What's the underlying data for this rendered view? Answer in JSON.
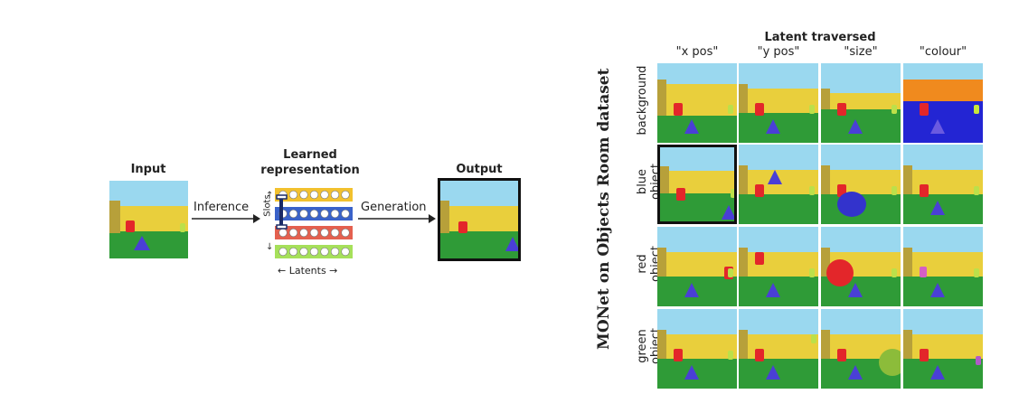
{
  "left": {
    "input_title": "Input",
    "learned_title_line1": "Learned",
    "learned_title_line2": "representation",
    "output_title": "Output",
    "inference_label": "Inference",
    "generation_label": "Generation",
    "slots_label": "Slots",
    "latents_label": "Latents",
    "slot_colors": [
      "#f2c12e",
      "#3a62c9",
      "#e4604f",
      "#a6e05a"
    ]
  },
  "right": {
    "vertical_title": "MONet on Objects Room dataset",
    "header_title": "Latent traversed",
    "columns": [
      "\"x pos\"",
      "\"y pos\"",
      "\"size\"",
      "\"colour\""
    ],
    "rows": [
      {
        "line1": "background",
        "line2": ""
      },
      {
        "line1": "blue",
        "line2": "object"
      },
      {
        "line1": "red",
        "line2": "object"
      },
      {
        "line1": "green",
        "line2": "object"
      }
    ]
  }
}
